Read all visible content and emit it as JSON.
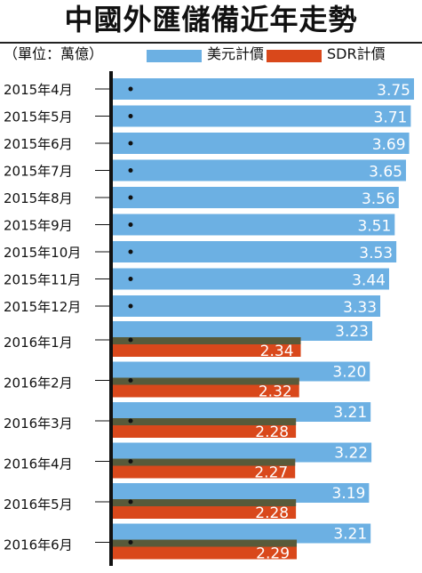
{
  "title": "中國外匯儲備近年走勢",
  "unit": "（單位：萬億）",
  "legend": [
    {
      "label": "美元計價",
      "color": "#6cb0e3"
    },
    {
      "label": "SDR計價",
      "color": "#d9481b"
    }
  ],
  "colors": {
    "usd_bar": "#6cb0e3",
    "sdr_bar": "#d9481b",
    "sdr_stripe": "#585a3a",
    "axis": "#111111"
  },
  "chart_data": {
    "type": "bar",
    "orientation": "horizontal",
    "categories": [
      "2015年4月",
      "2015年5月",
      "2015年6月",
      "2015年7月",
      "2015年8月",
      "2015年9月",
      "2015年10月",
      "2015年11月",
      "2015年12月",
      "2016年1月",
      "2016年2月",
      "2016年3月",
      "2016年4月",
      "2016年5月",
      "2016年6月"
    ],
    "series": [
      {
        "name": "美元計價",
        "values": [
          3.75,
          3.71,
          3.69,
          3.65,
          3.56,
          3.51,
          3.53,
          3.44,
          3.33,
          3.23,
          3.2,
          3.21,
          3.22,
          3.19,
          3.21
        ],
        "labels": [
          "3.75",
          "3.71",
          "3.69",
          "3.65",
          "3.56",
          "3.51",
          "3.53",
          "3.44",
          "3.33",
          "3.23",
          "3.20",
          "3.21",
          "3.22",
          "3.19",
          "3.21"
        ]
      },
      {
        "name": "SDR計價",
        "values": [
          null,
          null,
          null,
          null,
          null,
          null,
          null,
          null,
          null,
          2.34,
          2.32,
          2.28,
          2.27,
          2.28,
          2.29
        ],
        "labels": [
          "",
          "",
          "",
          "",
          "",
          "",
          "",
          "",
          "",
          "2.34",
          "2.32",
          "2.28",
          "2.27",
          "2.28",
          "2.29"
        ]
      }
    ],
    "xlim": [
      0,
      3.8
    ],
    "grid": false,
    "legend_position": "top"
  }
}
